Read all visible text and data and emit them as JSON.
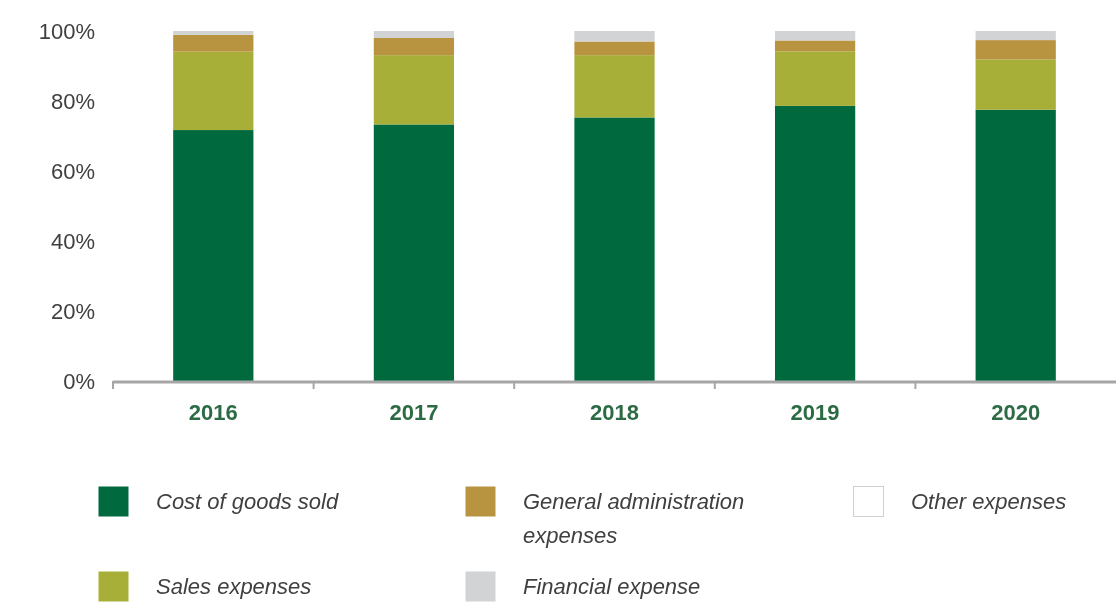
{
  "chart_data": {
    "type": "bar",
    "stacked": true,
    "categories": [
      "2016",
      "2017",
      "2018",
      "2019",
      "2020"
    ],
    "series": [
      {
        "name": "Cost of goods sold",
        "color": "#006a3e",
        "values": [
          71.7,
          73.3,
          75.3,
          78.6,
          77.5
        ]
      },
      {
        "name": "Sales expenses",
        "color": "#a8af39",
        "values": [
          22.4,
          19.8,
          17.8,
          15.6,
          14.4
        ]
      },
      {
        "name": "General administration expenses",
        "color": "#b89440",
        "values": [
          4.8,
          4.9,
          3.9,
          3.1,
          5.5
        ]
      },
      {
        "name": "Financial expense",
        "color": "#d2d3d5",
        "values": [
          1.1,
          2.0,
          3.0,
          2.7,
          2.6
        ]
      },
      {
        "name": "Other expenses",
        "color": "#ffffff",
        "values": [
          0,
          0,
          0,
          0,
          0
        ]
      }
    ],
    "ylim": [
      0,
      100
    ],
    "yticks": [
      {
        "value": 0,
        "label": "0%"
      },
      {
        "value": 20,
        "label": "20%"
      },
      {
        "value": 40,
        "label": "40%"
      },
      {
        "value": 60,
        "label": "60%"
      },
      {
        "value": 80,
        "label": "80%"
      },
      {
        "value": 100,
        "label": "100%"
      }
    ],
    "grid": false,
    "legend": "bottom"
  }
}
